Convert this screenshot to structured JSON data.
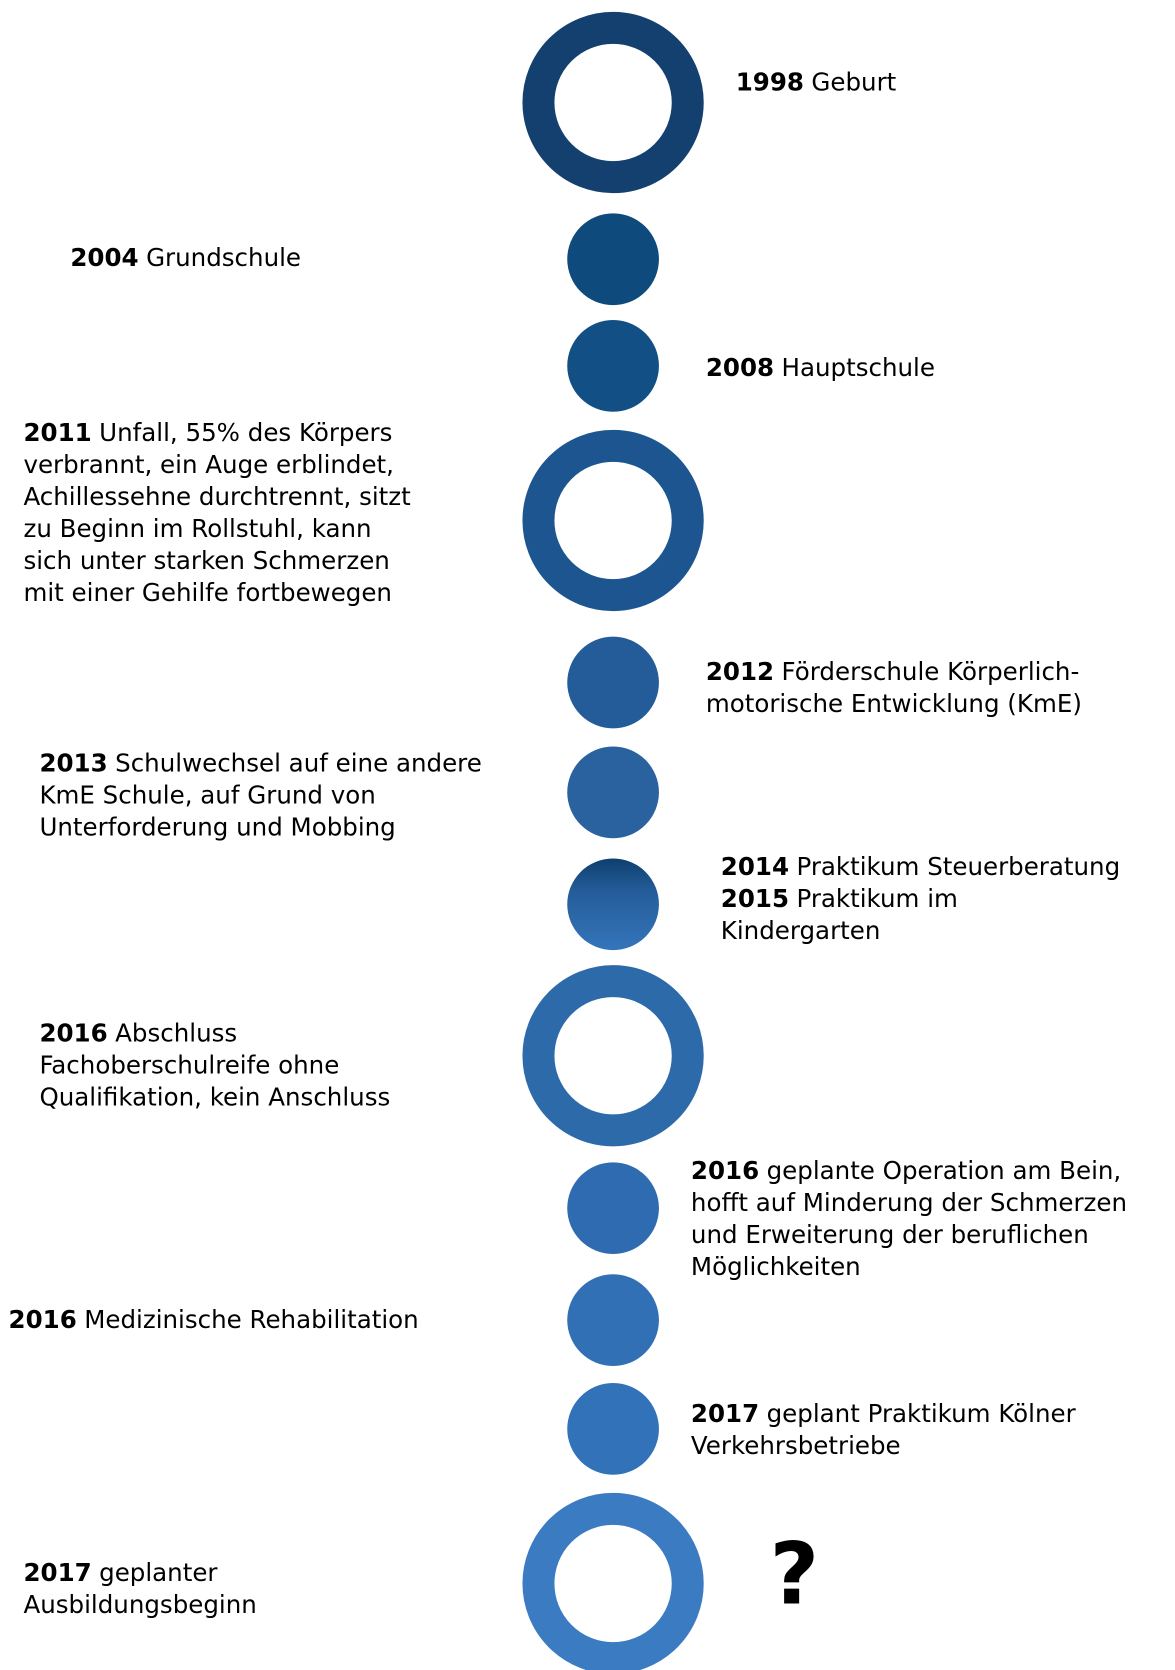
{
  "timeline": {
    "events": [
      {
        "year": "1998",
        "lines": [
          "Geburt"
        ]
      },
      {
        "year": "2004",
        "lines": [
          "Grundschule"
        ]
      },
      {
        "year": "2008",
        "lines": [
          "Hauptschule"
        ]
      },
      {
        "year": "2011",
        "lines": [
          "Unfall, 55% des Körpers",
          "verbrannt, ein Auge erblindet,",
          "Achillessehne durchtrennt, sitzt",
          "zu Beginn im Rollstuhl, kann",
          "sich unter starken Schmerzen",
          "mit einer Gehilfe fortbewegen"
        ]
      },
      {
        "year": "2012",
        "lines": [
          "Förderschule Körperlich-",
          "motorische Entwicklung (KmE)"
        ]
      },
      {
        "year": "2013",
        "lines": [
          "Schulwechsel auf eine andere",
          "KmE Schule, auf Grund von",
          "Unterforderung und Mobbing"
        ]
      },
      {
        "year": "2014",
        "lines": [
          "Praktikum Steuerberatung"
        ]
      },
      {
        "year": "2015",
        "lines": [
          "Praktikum im",
          "Kindergarten"
        ]
      },
      {
        "year": "2016",
        "lines": [
          "Abschluss",
          "Fachoberschulreife ohne",
          "Qualifikation, kein Anschluss"
        ]
      },
      {
        "year": "2016",
        "lines": [
          "geplante Operation am Bein,",
          "hofft auf Minderung der Schmerzen",
          "und Erweiterung der beruflichen",
          "Möglichkeiten"
        ]
      },
      {
        "year": "2016",
        "lines": [
          "Medizinische Rehabilitation"
        ]
      },
      {
        "year": "2017",
        "lines": [
          "geplant Praktikum  Kölner",
          "Verkehrsbetriebe"
        ]
      },
      {
        "year": "2017",
        "lines": [
          "geplanter",
          "Ausbildungsbeginn"
        ]
      }
    ],
    "question": "?"
  }
}
